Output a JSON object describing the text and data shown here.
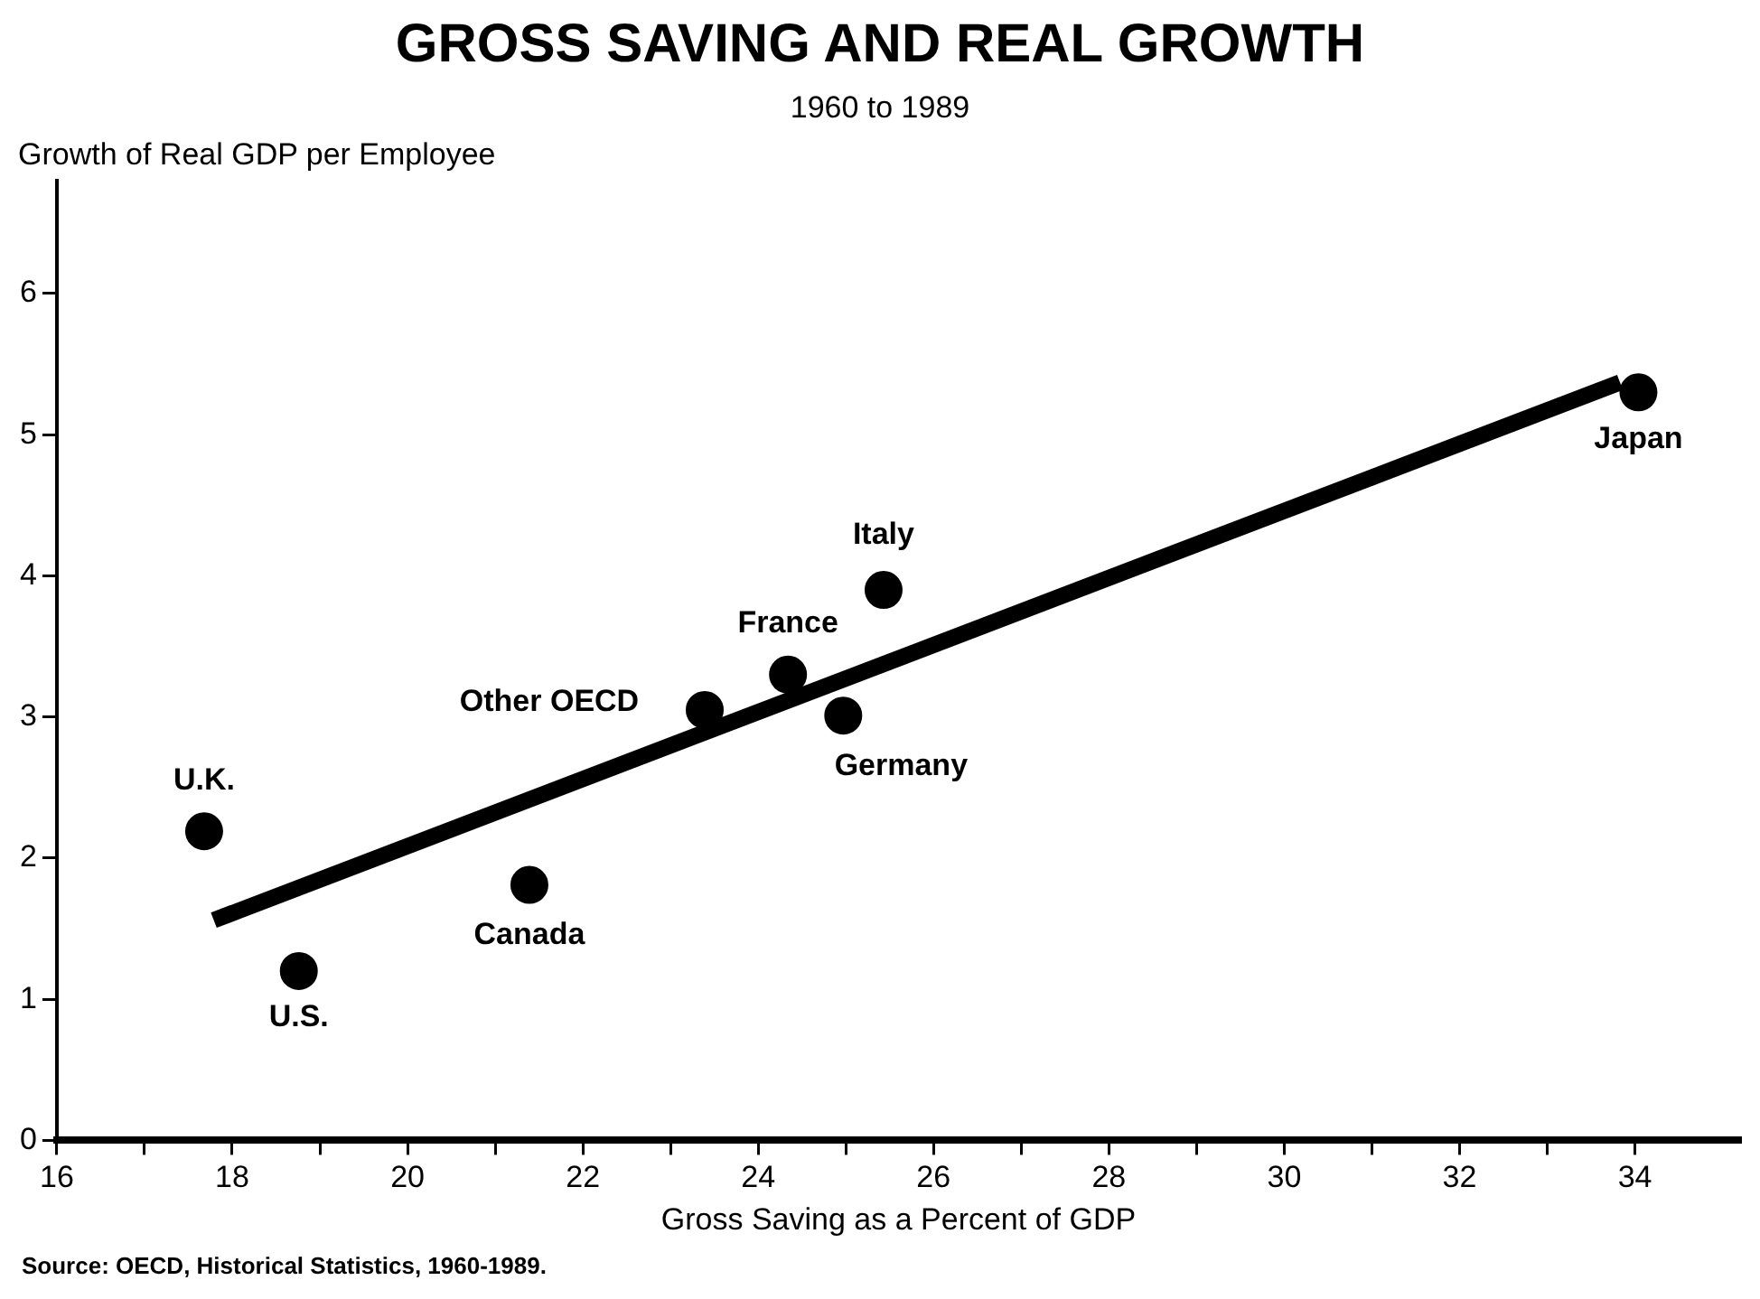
{
  "chart_data": {
    "type": "scatter",
    "title": "GROSS SAVING AND REAL GROWTH",
    "subtitle": "1960 to 1989",
    "xlabel": "Gross Saving as a Percent of GDP",
    "ylabel": "Growth of Real GDP per Employee",
    "series": [
      {
        "type": "scatter",
        "color": "#000000",
        "x": [
          17.68,
          18.76,
          21.39,
          23.39,
          24.34,
          24.97,
          25.43,
          34.04
        ],
        "values": [
          2.19,
          1.2,
          1.81,
          3.05,
          3.3,
          3.01,
          3.9,
          5.3
        ]
      },
      {
        "type": "line",
        "marker": "none",
        "color": "#000000",
        "x": [
          17.79,
          33.83
        ],
        "values": [
          1.56,
          5.37
        ]
      }
    ],
    "xlim": [
      16,
      35.2
    ],
    "xticks": [
      16,
      {
        "value": 17,
        "label": null
      },
      18,
      {
        "value": 19,
        "label": null
      },
      20,
      {
        "value": 21,
        "label": null
      },
      22,
      {
        "value": 23,
        "label": null
      },
      24,
      {
        "value": 25,
        "label": null
      },
      26,
      {
        "value": 27,
        "label": null
      },
      28,
      {
        "value": 29,
        "label": null
      },
      30,
      {
        "value": 31,
        "label": null
      },
      32,
      {
        "value": 33,
        "label": null
      },
      34
    ],
    "ylim": [
      0,
      6.8
    ],
    "yticks": [
      0,
      1,
      2,
      3,
      4,
      5,
      6
    ],
    "annotations": [
      {
        "text": "U.K.",
        "x": 17.68,
        "y": 2.19
      },
      {
        "text": "U.S.",
        "x": 18.76,
        "y": 1.2
      },
      {
        "text": "Canada",
        "x": 21.39,
        "y": 1.81
      },
      {
        "text": "Other OECD",
        "x": 23.39,
        "y": 3.05
      },
      {
        "text": "France",
        "x": 24.34,
        "y": 3.3
      },
      {
        "text": "Germany",
        "x": 24.97,
        "y": 3.01
      },
      {
        "text": "Italy",
        "x": 25.43,
        "y": 3.9
      },
      {
        "text": "Japan",
        "x": 34.04,
        "y": 5.3
      },
      "Source:   OECD, Historical Statistics, 1960-1989."
    ],
    "marker": "circle",
    "grid": false,
    "legend": false
  }
}
